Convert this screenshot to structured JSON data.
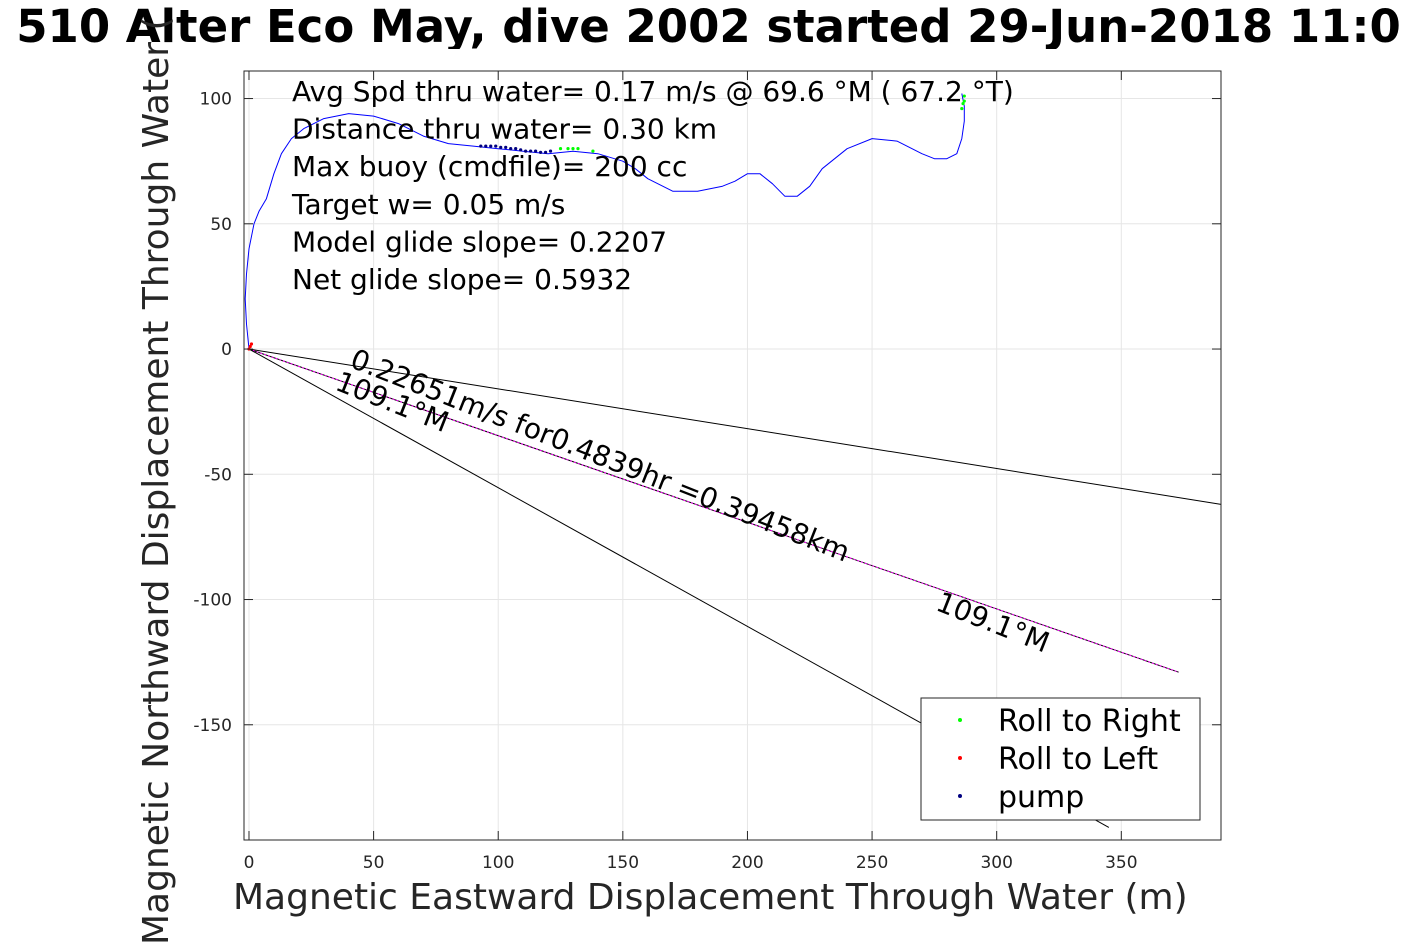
{
  "chart_data": {
    "type": "line",
    "title": "510 Alter Eco May, dive 2002 started 29-Jun-2018 11:0",
    "xlabel": "Magnetic Eastward Displacement Through Water (m)",
    "ylabel": "Magnetic Northward Displacement Through Water (",
    "xlim": [
      -2,
      390
    ],
    "ylim": [
      -196,
      111
    ],
    "xticks": [
      0,
      50,
      100,
      150,
      200,
      250,
      300,
      350
    ],
    "yticks": [
      100,
      50,
      0,
      -50,
      -100,
      -150
    ],
    "grid": true,
    "legend_position": "bottom-right",
    "stats_text": [
      "Avg Spd thru water=  0.17 m/s @  69.6 °M ( 67.2 °T)",
      "Distance thru water=  0.30 km",
      "Max buoy (cmdfile)= 200 cc",
      "Target w= 0.05 m/s",
      "Model glide slope= 0.2207",
      "Net glide slope= 0.5932"
    ],
    "track": {
      "color": "#0000ff",
      "x": [
        0,
        -1,
        -1.5,
        -1,
        0,
        2,
        4,
        7,
        10,
        13,
        17,
        22,
        30,
        40,
        50,
        60,
        70,
        80,
        90,
        100,
        110,
        120,
        130,
        140,
        150,
        155,
        160,
        170,
        180,
        190,
        195,
        200,
        205,
        210,
        215,
        220,
        225,
        230,
        240,
        250,
        260,
        270,
        275,
        280,
        284,
        286,
        287,
        287,
        286
      ],
      "y": [
        0,
        10,
        20,
        30,
        40,
        50,
        55,
        60,
        70,
        78,
        84,
        88,
        92,
        94,
        93,
        90,
        85,
        82,
        81,
        80,
        79,
        78,
        79,
        78,
        75,
        72,
        68,
        63,
        63,
        65,
        67,
        70,
        70,
        66,
        61,
        61,
        65,
        72,
        80,
        84,
        83,
        78,
        76,
        76,
        78,
        84,
        91,
        97,
        102
      ]
    },
    "series": [
      {
        "name": "Roll to Right",
        "color": "#00ff00",
        "x": [
          125,
          128,
          130,
          132,
          138,
          286,
          286.5,
          287,
          287
        ],
        "y": [
          80,
          80,
          80,
          80,
          79,
          96,
          98,
          99,
          101
        ]
      },
      {
        "name": "Roll to Left",
        "color": "#ff0000",
        "x": [
          0,
          0.5,
          1
        ],
        "y": [
          0,
          1,
          2
        ]
      },
      {
        "name": "pump",
        "color": "#000080",
        "x": [
          93,
          95,
          97,
          99,
          101,
          103,
          105,
          107,
          109,
          111,
          113,
          115,
          117,
          119,
          121
        ],
        "y": [
          81,
          81,
          81,
          81,
          80.5,
          80.5,
          80,
          80,
          79.5,
          79,
          79,
          79,
          78.5,
          78.5,
          79
        ]
      }
    ],
    "vectors": [
      {
        "x": [
          0,
          390
        ],
        "y": [
          0,
          -62
        ],
        "color": "#000000"
      },
      {
        "x": [
          0,
          373
        ],
        "y": [
          0,
          -129
        ],
        "color": "#000000"
      },
      {
        "x": [
          0,
          373
        ],
        "y": [
          0,
          -129
        ],
        "color": "#ff00ff"
      },
      {
        "x": [
          0,
          345
        ],
        "y": [
          0,
          -191
        ],
        "color": "#000000"
      }
    ],
    "annotations": [
      {
        "text": "0.22651m/s for0.4839hr =0.39458km",
        "x": 40,
        "y": -7,
        "angle": 21.5
      },
      {
        "text": "109.1°M",
        "x": 34,
        "y": -16,
        "angle": 21.5
      },
      {
        "text": "109.1°M",
        "x": 275,
        "y": -104,
        "angle": 21.5
      }
    ]
  }
}
